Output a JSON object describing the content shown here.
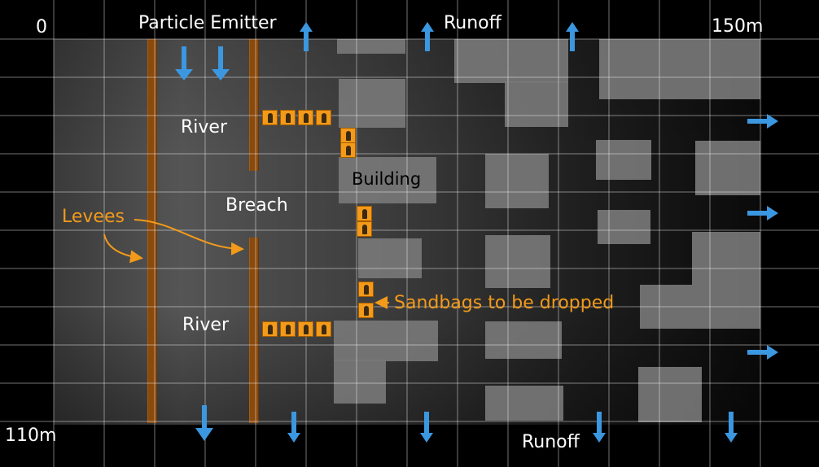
{
  "labels": {
    "zero": "0",
    "particle_emitter": "Particle Emitter",
    "runoff_top": "Runoff",
    "scale_right": "150m",
    "scale_bottom": "110m",
    "runoff_bottom": "Runoff",
    "river_upper": "River",
    "river_lower": "River",
    "breach": "Breach",
    "building": "Building",
    "levees": "Levees",
    "sandbags": "Sandbags to be dropped"
  },
  "colors": {
    "background": "#000000",
    "grid": "#ffffff",
    "arrow": "#3b97e0",
    "levee": "#8a4a0c",
    "sandbag": "#f39a1a",
    "annotation": "#f39a1a",
    "building": "#777777"
  },
  "icons": {
    "flow_arrow": "arrow-icon",
    "sandbag": "sandbag-icon"
  }
}
